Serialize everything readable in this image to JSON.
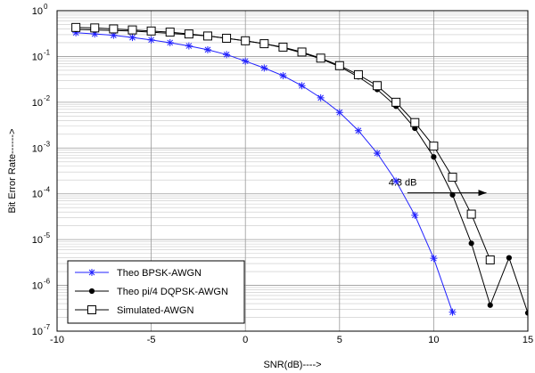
{
  "chart_data": {
    "type": "line",
    "title": "",
    "xlabel": "SNR(dB)---->",
    "ylabel": "Bit Error Rate------>",
    "x_scale": "linear",
    "y_scale": "log",
    "xlim": [
      -10,
      15
    ],
    "ylim": [
      1e-07,
      1
    ],
    "xticks": [
      -10,
      -5,
      0,
      5,
      10,
      15
    ],
    "xtick_labels": [
      "-10",
      "-5",
      "0",
      "5",
      "10",
      "15"
    ],
    "yticks": [
      1,
      0.1,
      0.01,
      0.001,
      0.0001,
      1e-05,
      1e-06,
      1e-07
    ],
    "ytick_labels": [
      {
        "base": "10",
        "exp": "0"
      },
      {
        "base": "10",
        "exp": "-1"
      },
      {
        "base": "10",
        "exp": "-2"
      },
      {
        "base": "10",
        "exp": "-3"
      },
      {
        "base": "10",
        "exp": "-4"
      },
      {
        "base": "10",
        "exp": "-5"
      },
      {
        "base": "10",
        "exp": "-6"
      },
      {
        "base": "10",
        "exp": "-7"
      }
    ],
    "grid": true,
    "legend_position": "bottom-left",
    "series": [
      {
        "name": "Theo BPSK-AWGN",
        "color": "#2020ff",
        "marker": "star",
        "x": [
          -9,
          -8,
          -7,
          -6,
          -5,
          -4,
          -3,
          -2,
          -1,
          0,
          1,
          2,
          3,
          4,
          5,
          6,
          7,
          8,
          9,
          10,
          11
        ],
        "y": [
          0.33,
          0.31,
          0.29,
          0.26,
          0.23,
          0.2,
          0.17,
          0.14,
          0.11,
          0.079,
          0.056,
          0.038,
          0.023,
          0.0125,
          0.006,
          0.0024,
          0.00077,
          0.00019,
          3.4e-05,
          3.9e-06,
          2.6e-07
        ]
      },
      {
        "name": "Theo pi/4 DQPSK-AWGN",
        "color": "#000000",
        "marker": "dot",
        "x": [
          -9,
          -8,
          -7,
          -6,
          -5,
          -4,
          -3,
          -2,
          -1,
          0,
          1,
          2,
          3,
          4,
          5,
          6,
          7,
          8,
          9,
          10,
          11,
          12,
          13,
          14,
          15
        ],
        "y": [
          0.39,
          0.38,
          0.37,
          0.36,
          0.34,
          0.32,
          0.3,
          0.28,
          0.25,
          0.22,
          0.19,
          0.155,
          0.12,
          0.089,
          0.06,
          0.036,
          0.019,
          0.0082,
          0.0027,
          0.00064,
          9.5e-05,
          8.3e-06,
          3.7e-07,
          4e-06,
          2.5e-07
        ]
      },
      {
        "name": "Simulated-AWGN",
        "color": "#000000",
        "marker": "square",
        "x": [
          -9,
          -8,
          -7,
          -6,
          -5,
          -4,
          -3,
          -2,
          -1,
          0,
          1,
          2,
          3,
          4,
          5,
          6,
          7,
          8,
          9,
          10,
          11,
          12,
          13
        ],
        "y": [
          0.43,
          0.42,
          0.4,
          0.38,
          0.36,
          0.34,
          0.31,
          0.28,
          0.25,
          0.22,
          0.19,
          0.16,
          0.125,
          0.092,
          0.063,
          0.04,
          0.023,
          0.01,
          0.0036,
          0.0011,
          0.00023,
          3.6e-05,
          3.6e-06
        ]
      }
    ],
    "annotations": [
      {
        "text": "4.3 dB",
        "x": 7.6,
        "y": 0.00018,
        "arrow_from": [
          8.6,
          0.000105
        ],
        "arrow_to": [
          12.8,
          0.000105
        ]
      }
    ]
  }
}
